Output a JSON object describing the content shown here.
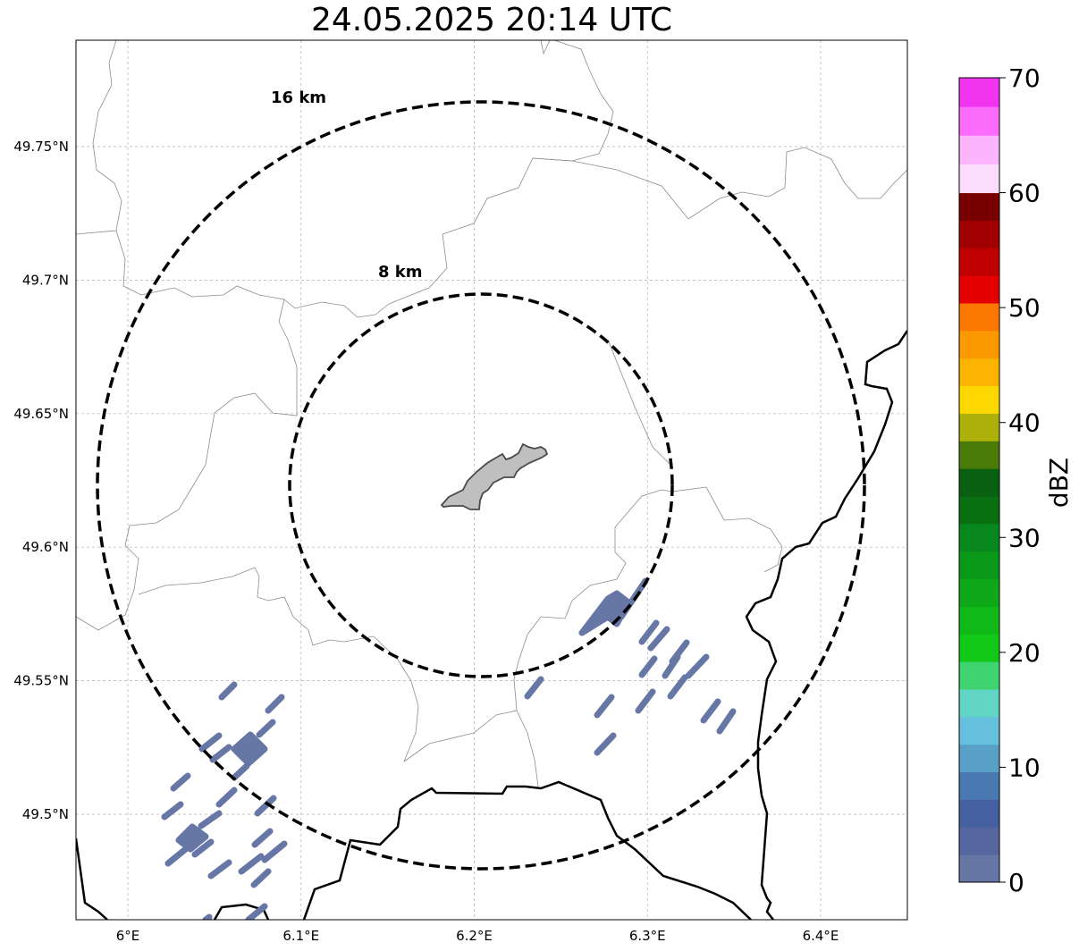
{
  "title": "24.05.2025 20:14 UTC",
  "map": {
    "lon_range": [
      5.97,
      6.45
    ],
    "lat_range": [
      49.46,
      49.79
    ],
    "lon_ticks": [
      {
        "value": 6.0,
        "label": "6°E"
      },
      {
        "value": 6.1,
        "label": "6.1°E"
      },
      {
        "value": 6.2,
        "label": "6.2°E"
      },
      {
        "value": 6.3,
        "label": "6.3°E"
      },
      {
        "value": 6.4,
        "label": "6.4°E"
      }
    ],
    "lat_ticks": [
      {
        "value": 49.75,
        "label": "49.75°N"
      },
      {
        "value": 49.7,
        "label": "49.7°N"
      },
      {
        "value": 49.65,
        "label": "49.65°N"
      },
      {
        "value": 49.6,
        "label": "49.6°N"
      },
      {
        "value": 49.55,
        "label": "49.55°N"
      },
      {
        "value": 49.5,
        "label": "49.5°N"
      }
    ],
    "gridlines": true,
    "radar_center": {
      "lon": 6.203,
      "lat": 49.623
    },
    "range_rings": [
      {
        "radius_km": 8,
        "label": "8 km"
      },
      {
        "radius_km": 16,
        "label": "16 km"
      }
    ],
    "city_polygon_color": "#bfbfbf",
    "echo_color": "#6677a6",
    "echo_value_dbz": 0
  },
  "colorbar": {
    "label": "dBZ",
    "min": 0,
    "max": 70,
    "ticks": [
      {
        "value": 0,
        "label": "0"
      },
      {
        "value": 10,
        "label": "10"
      },
      {
        "value": 20,
        "label": "20"
      },
      {
        "value": 30,
        "label": "30"
      },
      {
        "value": 40,
        "label": "40"
      },
      {
        "value": 50,
        "label": "50"
      },
      {
        "value": 60,
        "label": "60"
      },
      {
        "value": 70,
        "label": "70"
      }
    ],
    "colors": [
      "#6677a6",
      "#5566a0",
      "#4560a0",
      "#4a78b0",
      "#58a0c8",
      "#64c0dc",
      "#62d4c4",
      "#40d470",
      "#12c818",
      "#10b818",
      "#0ea818",
      "#0a9818",
      "#08881c",
      "#087010",
      "#086010",
      "#4a7a08",
      "#acb008",
      "#fcd800",
      "#fcb400",
      "#fc9800",
      "#fc7800",
      "#e40000",
      "#c00000",
      "#a00000",
      "#780000",
      "#fcdcfc",
      "#fcb4fc",
      "#fc6cfc",
      "#f034f0"
    ]
  }
}
